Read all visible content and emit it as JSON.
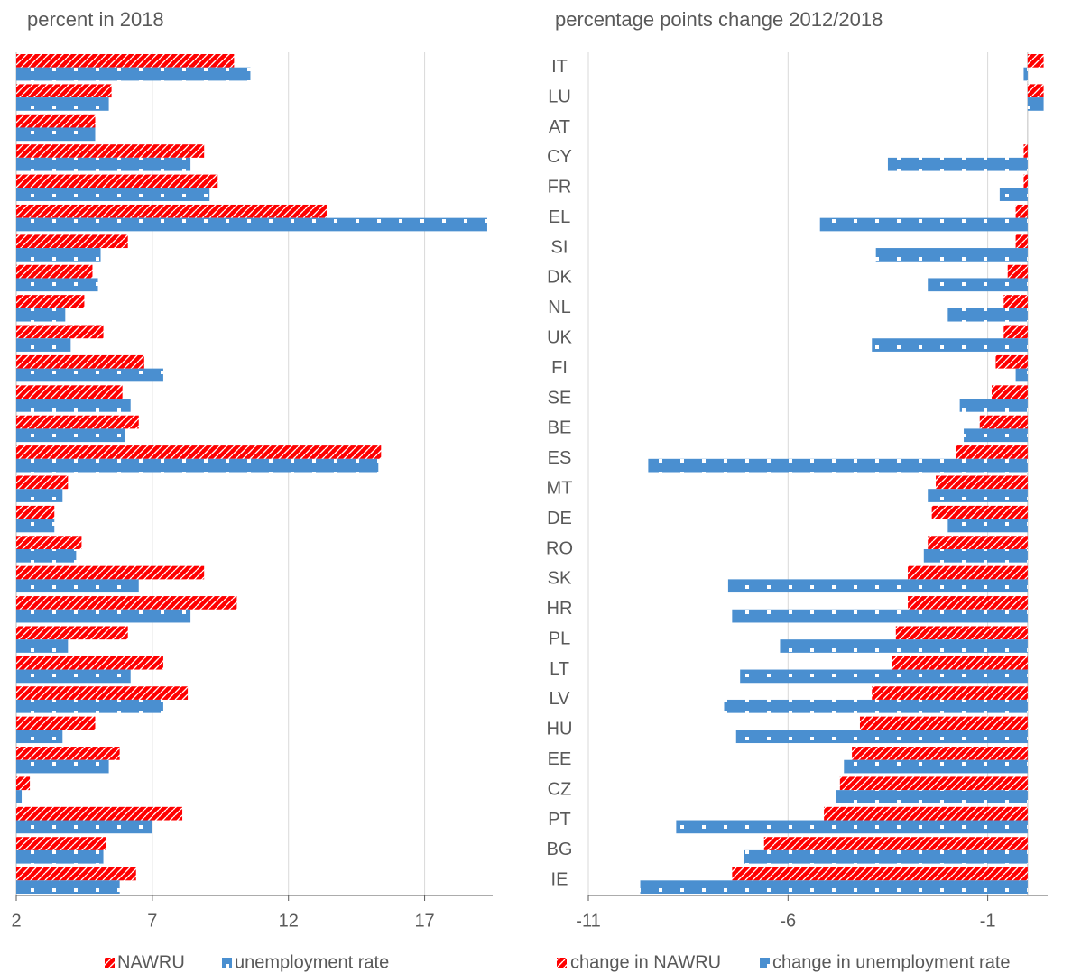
{
  "chart_data": [
    {
      "type": "bar",
      "orientation": "horizontal",
      "title": "percent in 2018",
      "categories": [
        null,
        null,
        null,
        null,
        null,
        null,
        null,
        null,
        null,
        null,
        null,
        null,
        null,
        null,
        null,
        null,
        null,
        null,
        null,
        null,
        null,
        null,
        null,
        null,
        null,
        null,
        null,
        null
      ],
      "series": [
        {
          "name": "NAWRU",
          "color": "#ff0000",
          "values": [
            10.0,
            5.5,
            4.9,
            8.9,
            9.4,
            13.4,
            6.1,
            4.8,
            4.5,
            5.2,
            6.7,
            5.9,
            6.5,
            15.4,
            3.9,
            3.4,
            4.4,
            8.9,
            10.1,
            6.1,
            7.4,
            8.3,
            4.9,
            5.8,
            2.5,
            8.1,
            5.3,
            6.4
          ]
        },
        {
          "name": "unemployment rate",
          "color": "#4a8fd0",
          "values": [
            10.6,
            5.4,
            4.9,
            8.4,
            9.1,
            19.3,
            5.1,
            5.0,
            3.8,
            4.0,
            7.4,
            6.2,
            6.0,
            15.3,
            3.7,
            3.4,
            4.2,
            6.5,
            8.4,
            3.9,
            6.2,
            7.4,
            3.7,
            5.4,
            2.2,
            7.0,
            5.2,
            5.8
          ]
        }
      ],
      "xlim": [
        2,
        19.5
      ],
      "xticks": [
        2,
        7,
        12,
        17
      ],
      "grid": true
    },
    {
      "type": "bar",
      "orientation": "horizontal",
      "title": "percentage points change 2012/2018",
      "categories": [
        "IT",
        "LU",
        "AT",
        "CY",
        "FR",
        "EL",
        "SI",
        "DK",
        "NL",
        "UK",
        "FI",
        "SE",
        "BE",
        "ES",
        "MT",
        "DE",
        "RO",
        "SK",
        "HR",
        "PL",
        "LT",
        "LV",
        "HU",
        "EE",
        "CZ",
        "PT",
        "BG",
        "IE"
      ],
      "series": [
        {
          "name": "change in NAWRU",
          "color": "#ff0000",
          "values": [
            0.4,
            0.4,
            0,
            -0.1,
            -0.1,
            -0.3,
            -0.3,
            -0.5,
            -0.6,
            -0.6,
            -0.8,
            -0.9,
            -1.2,
            -1.8,
            -2.3,
            -2.4,
            -2.5,
            -3.0,
            -3.0,
            -3.3,
            -3.4,
            -3.9,
            -4.2,
            -4.4,
            -4.7,
            -5.1,
            -6.6,
            -7.4
          ]
        },
        {
          "name": "change in unemployment rate",
          "color": "#4a8fd0",
          "values": [
            -0.1,
            0.4,
            0,
            -3.5,
            -0.7,
            -5.2,
            -3.8,
            -2.5,
            -2.0,
            -3.9,
            -0.3,
            -1.7,
            -1.6,
            -9.5,
            -2.5,
            -2.0,
            -2.6,
            -7.5,
            -7.4,
            -6.2,
            -7.2,
            -7.6,
            -7.3,
            -4.6,
            -4.8,
            -8.8,
            -7.1,
            -9.7
          ]
        }
      ],
      "xlim": [
        -11,
        0.5
      ],
      "xticks": [
        -11,
        -6,
        -1
      ],
      "grid": true
    }
  ]
}
